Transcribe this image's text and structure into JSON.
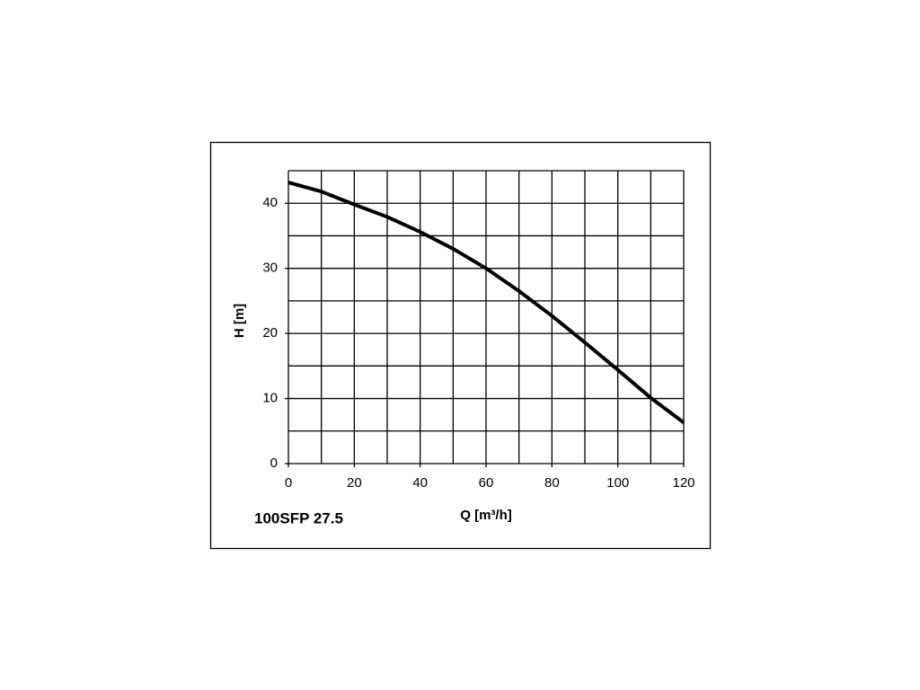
{
  "chart_data": {
    "type": "line",
    "label": "100SFP 27.5",
    "xlabel": "Q [m³/h]",
    "ylabel": "H [m]",
    "x": [
      0,
      10,
      20,
      30,
      40,
      50,
      60,
      70,
      80,
      90,
      100,
      110,
      120
    ],
    "series": [
      {
        "color": "#000000",
        "values": [
          43.2,
          41.8,
          39.8,
          37.9,
          35.6,
          33.0,
          30.0,
          26.5,
          22.7,
          18.6,
          14.4,
          10.1,
          6.3
        ]
      }
    ],
    "xlim": [
      0,
      120
    ],
    "xticks": [
      0,
      20,
      40,
      60,
      80,
      100,
      120
    ],
    "xminor": [
      10,
      30,
      50,
      70,
      90,
      110
    ],
    "ylim": [
      0,
      45
    ],
    "yticks": [
      0,
      10,
      20,
      30,
      40
    ],
    "yminor": [
      5,
      15,
      25,
      35,
      45
    ],
    "grid": true
  }
}
